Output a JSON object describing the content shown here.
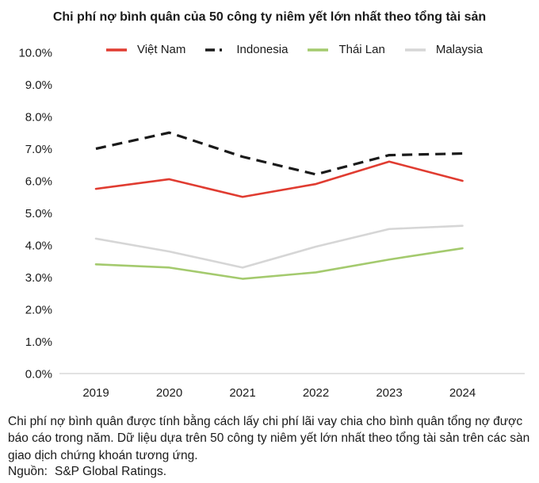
{
  "title": "Chi phí nợ bình quân của 50 công ty niêm yết lớn nhất theo tổng tài sản",
  "footnote": "Chi phí nợ bình quân được tính bằng cách lấy chi phí lãi vay chia cho bình quân tổng nợ được báo cáo trong năm. Dữ liệu dựa trên 50 công ty niêm yết lớn nhất theo tổng tài sản trên các sàn giao dịch chứng khoán tương ứng.",
  "source_label": "Nguồn:",
  "source_value": "S&P Global Ratings.",
  "colors": {
    "viet_nam": "#e03c31",
    "indonesia": "#1a1a1a",
    "thai_lan": "#a4ca6e",
    "malaysia": "#d6d6d6",
    "axis_line": "#d9d9d9",
    "text": "#1a1a1a"
  },
  "chart_data": {
    "type": "line",
    "title": "Chi phí nợ bình quân của 50 công ty niêm yết lớn nhất theo tổng tài sản",
    "x": [
      2019,
      2020,
      2021,
      2022,
      2023,
      2024
    ],
    "series": [
      {
        "name": "Việt Nam",
        "color": "#e03c31",
        "dash": "",
        "legend_dash": "",
        "width": 2.6,
        "values": [
          5.75,
          6.05,
          5.5,
          5.9,
          6.6,
          6.0
        ]
      },
      {
        "name": "Indonesia",
        "color": "#1a1a1a",
        "dash": "13 8",
        "legend_dash": "12 6 3 30",
        "width": 3.2,
        "values": [
          7.0,
          7.5,
          6.75,
          6.2,
          6.8,
          6.85
        ]
      },
      {
        "name": "Thái Lan",
        "color": "#a4ca6e",
        "dash": "",
        "legend_dash": "",
        "width": 2.6,
        "values": [
          3.4,
          3.3,
          2.95,
          3.15,
          3.55,
          3.9
        ]
      },
      {
        "name": "Malaysia",
        "color": "#d6d6d6",
        "dash": "",
        "legend_dash": "",
        "width": 2.6,
        "values": [
          4.2,
          3.8,
          3.3,
          3.95,
          4.5,
          4.6
        ]
      }
    ],
    "xlabel": "",
    "ylabel": "",
    "ylim": [
      0,
      10
    ],
    "ytick_step": 1,
    "ytick_format": "one-decimal-percent",
    "grid": false,
    "legend_position": "top"
  }
}
